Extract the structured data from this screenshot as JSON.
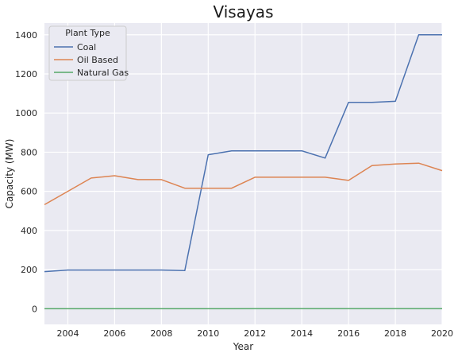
{
  "chart_data": {
    "type": "line",
    "title": "Visayas",
    "xlabel": "Year",
    "ylabel": "Capacity (MW)",
    "xlim": [
      2003,
      2020
    ],
    "ylim": [
      -80,
      1460
    ],
    "x_ticks": [
      "2004",
      "2006",
      "2008",
      "2010",
      "2012",
      "2014",
      "2016",
      "2018",
      "2020"
    ],
    "y_ticks": [
      "0",
      "200",
      "400",
      "600",
      "800",
      "1000",
      "1200",
      "1400"
    ],
    "grid": true,
    "legend": {
      "title": "Plant Type",
      "position": "top-left"
    },
    "x": [
      2003,
      2004,
      2005,
      2006,
      2007,
      2008,
      2009,
      2010,
      2011,
      2012,
      2013,
      2014,
      2015,
      2016,
      2017,
      2018,
      2019,
      2020
    ],
    "series": [
      {
        "name": "Coal",
        "color": "#4c72b0",
        "values": [
          190,
          198,
          198,
          198,
          198,
          198,
          195,
          787,
          807,
          807,
          807,
          807,
          770,
          1055,
          1055,
          1060,
          1400,
          1400
        ]
      },
      {
        "name": "Oil Based",
        "color": "#dd8452",
        "values": [
          532,
          600,
          668,
          680,
          660,
          660,
          616,
          616,
          616,
          672,
          672,
          672,
          672,
          656,
          732,
          740,
          744,
          706
        ]
      },
      {
        "name": "Natural Gas",
        "color": "#55a868",
        "values": [
          0,
          0,
          0,
          0,
          0,
          0,
          0,
          0,
          0,
          1,
          1,
          1,
          1,
          1,
          1,
          1,
          1,
          1
        ]
      }
    ]
  }
}
